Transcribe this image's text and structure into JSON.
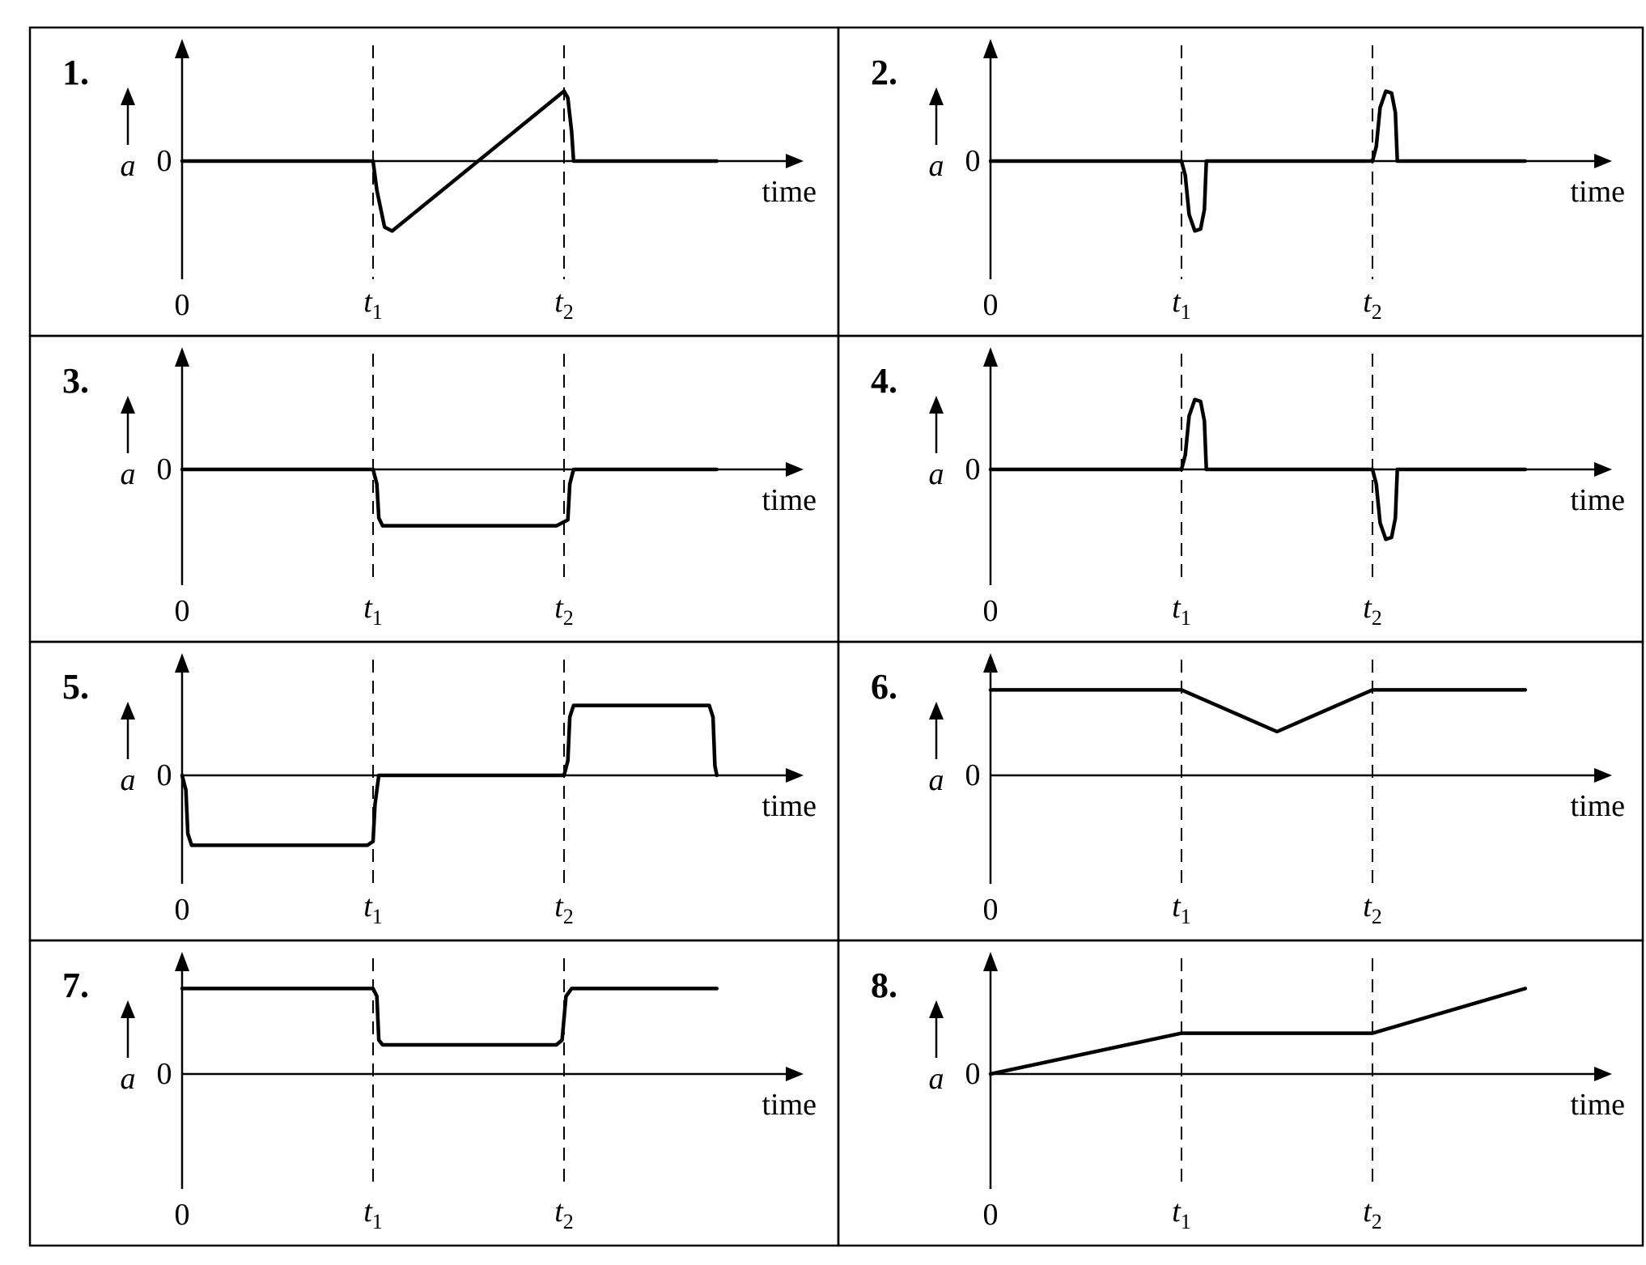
{
  "figure": {
    "axis_symbol": "a",
    "zero_label": "0",
    "time_label": "time",
    "origin_tick": "0",
    "t1_base": "t",
    "t1_sub": "1",
    "t2_base": "t",
    "t2_sub": "2"
  },
  "panels": [
    {
      "number": "1.",
      "curve": [
        [
          0,
          0
        ],
        [
          1,
          0
        ],
        [
          1.02,
          -0.3
        ],
        [
          1.06,
          -0.68
        ],
        [
          1.1,
          -0.72
        ],
        [
          2,
          0.72
        ],
        [
          2.02,
          0.65
        ],
        [
          2.04,
          0.3
        ],
        [
          2.05,
          0
        ],
        [
          2.8,
          0
        ]
      ]
    },
    {
      "number": "2.",
      "curve": [
        [
          0,
          0
        ],
        [
          1,
          0
        ],
        [
          1.02,
          -0.15
        ],
        [
          1.04,
          -0.55
        ],
        [
          1.07,
          -0.72
        ],
        [
          1.1,
          -0.7
        ],
        [
          1.12,
          -0.5
        ],
        [
          1.13,
          0
        ],
        [
          2,
          0
        ],
        [
          2.02,
          0.15
        ],
        [
          2.04,
          0.55
        ],
        [
          2.07,
          0.72
        ],
        [
          2.1,
          0.7
        ],
        [
          2.12,
          0.5
        ],
        [
          2.13,
          0
        ],
        [
          2.8,
          0
        ]
      ]
    },
    {
      "number": "3.",
      "curve": [
        [
          0,
          0
        ],
        [
          1,
          0
        ],
        [
          1.02,
          -0.15
        ],
        [
          1.03,
          -0.5
        ],
        [
          1.05,
          -0.58
        ],
        [
          1.96,
          -0.58
        ],
        [
          2.02,
          -0.52
        ],
        [
          2.03,
          -0.15
        ],
        [
          2.05,
          0
        ],
        [
          2.8,
          0
        ]
      ]
    },
    {
      "number": "4.",
      "curve": [
        [
          0,
          0
        ],
        [
          1,
          0
        ],
        [
          1.02,
          0.15
        ],
        [
          1.04,
          0.55
        ],
        [
          1.07,
          0.72
        ],
        [
          1.1,
          0.7
        ],
        [
          1.12,
          0.5
        ],
        [
          1.13,
          0
        ],
        [
          2,
          0
        ],
        [
          2.02,
          -0.15
        ],
        [
          2.04,
          -0.55
        ],
        [
          2.07,
          -0.72
        ],
        [
          2.1,
          -0.7
        ],
        [
          2.12,
          -0.5
        ],
        [
          2.13,
          0
        ],
        [
          2.8,
          0
        ]
      ]
    },
    {
      "number": "5.",
      "curve": [
        [
          0,
          0
        ],
        [
          0.02,
          -0.15
        ],
        [
          0.03,
          -0.6
        ],
        [
          0.05,
          -0.72
        ],
        [
          0.97,
          -0.72
        ],
        [
          1.0,
          -0.68
        ],
        [
          1.01,
          -0.3
        ],
        [
          1.03,
          0
        ],
        [
          2,
          0
        ],
        [
          2.02,
          0.15
        ],
        [
          2.03,
          0.6
        ],
        [
          2.05,
          0.72
        ],
        [
          2.76,
          0.72
        ],
        [
          2.78,
          0.6
        ],
        [
          2.79,
          0.1
        ],
        [
          2.8,
          0
        ]
      ]
    },
    {
      "number": "6.",
      "curve": [
        [
          0,
          0.88
        ],
        [
          1,
          0.88
        ],
        [
          1.5,
          0.45
        ],
        [
          2,
          0.88
        ],
        [
          2.8,
          0.88
        ]
      ]
    },
    {
      "number": "7.",
      "curve": [
        [
          0,
          0.88
        ],
        [
          1,
          0.88
        ],
        [
          1.02,
          0.8
        ],
        [
          1.03,
          0.35
        ],
        [
          1.05,
          0.3
        ],
        [
          1.96,
          0.3
        ],
        [
          1.99,
          0.35
        ],
        [
          2.01,
          0.8
        ],
        [
          2.04,
          0.88
        ],
        [
          2.8,
          0.88
        ]
      ]
    },
    {
      "number": "8.",
      "curve": [
        [
          0,
          0
        ],
        [
          1,
          0.42
        ],
        [
          2,
          0.42
        ],
        [
          2.8,
          0.88
        ]
      ]
    }
  ]
}
